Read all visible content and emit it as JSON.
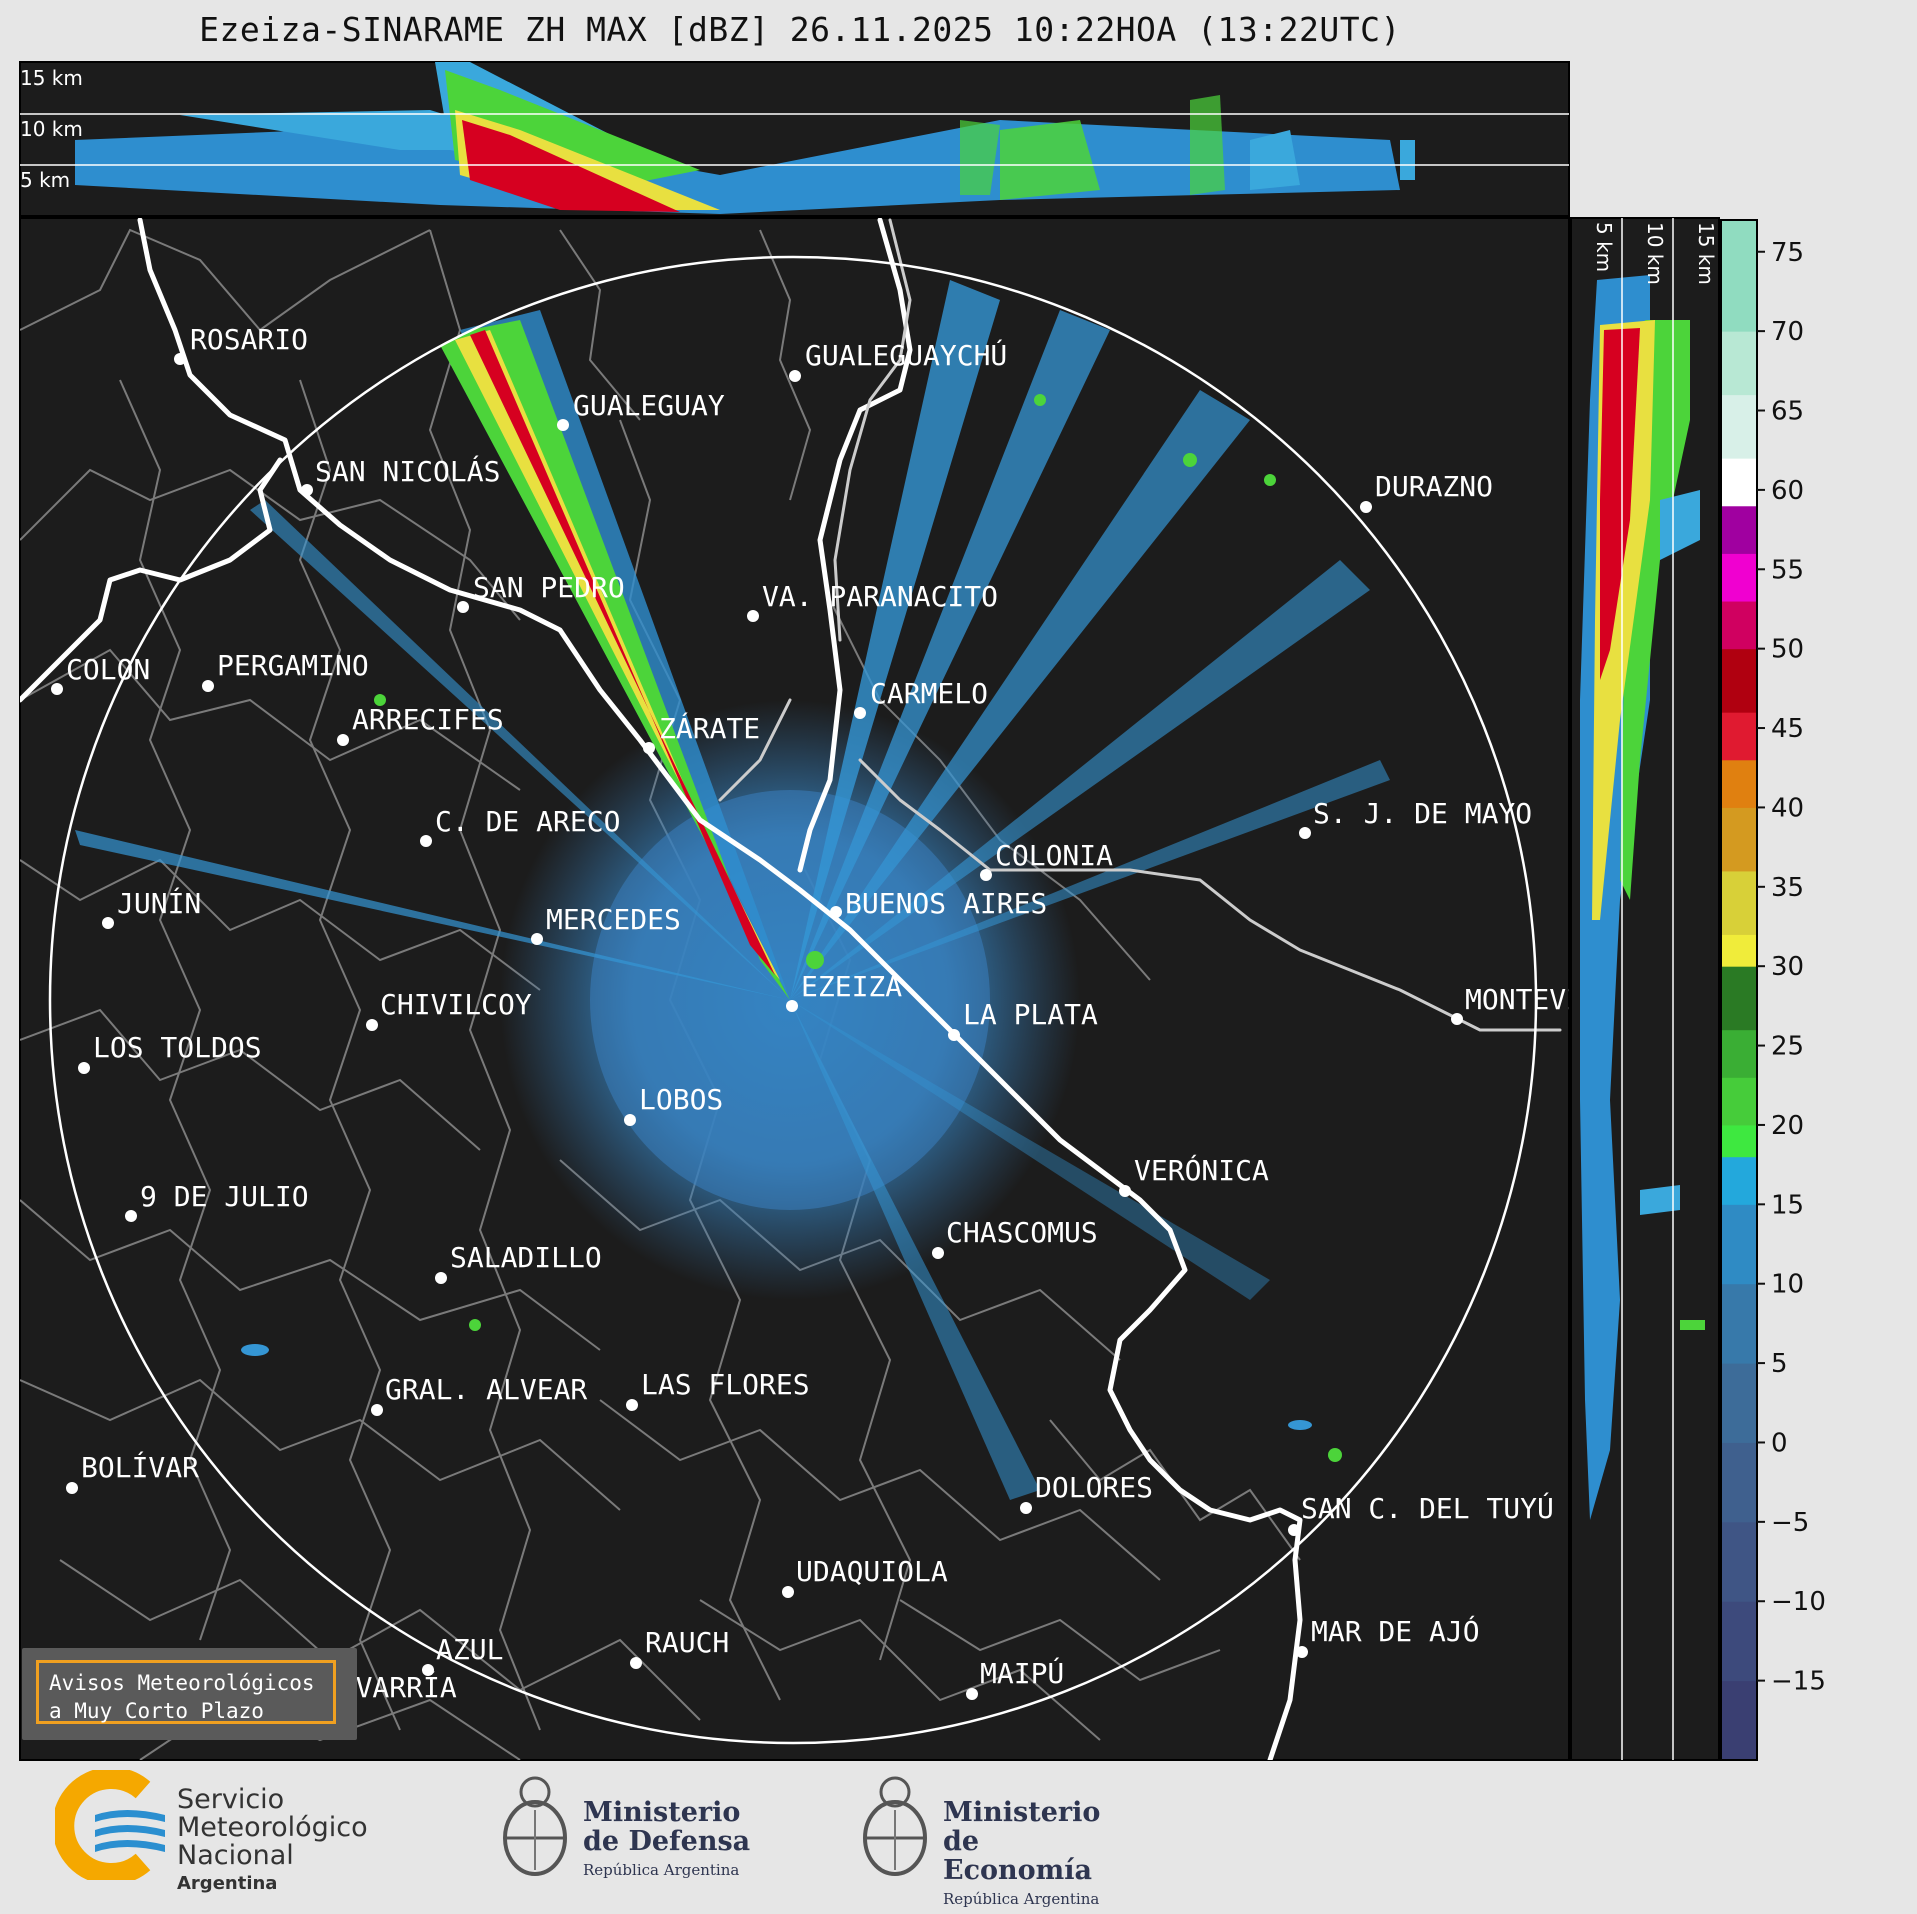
{
  "title": "Ezeiza-SINARAME ZH MAX [dBZ] 26.11.2025 10:22HOA (13:22UTC)",
  "top_panel": {
    "height_labels": [
      "15 km",
      "10 km",
      "5 km"
    ]
  },
  "side_panel": {
    "height_labels": [
      "5 km",
      "10 km",
      "15 km"
    ]
  },
  "colorbar": {
    "ticks": [
      "75",
      "70",
      "65",
      "60",
      "55",
      "50",
      "45",
      "40",
      "35",
      "30",
      "25",
      "20",
      "15",
      "10",
      "5",
      "0",
      "−5",
      "−10",
      "−15"
    ],
    "range": [
      -20,
      77
    ]
  },
  "cities": [
    {
      "name": "ROSARIO"
    },
    {
      "name": "GUALEGUAYCHÚ"
    },
    {
      "name": "GUALEGUAY"
    },
    {
      "name": "SAN NICOLÁS"
    },
    {
      "name": "DURAZNO"
    },
    {
      "name": "SAN PEDRO"
    },
    {
      "name": "VA. PARANACITO"
    },
    {
      "name": "COLON"
    },
    {
      "name": "PERGAMINO"
    },
    {
      "name": "CARMELO"
    },
    {
      "name": "ARRECIFES"
    },
    {
      "name": "ZÁRATE"
    },
    {
      "name": "C. DE ARECO"
    },
    {
      "name": "S. J. DE MAYO"
    },
    {
      "name": "COLONIA"
    },
    {
      "name": "JUNÍN"
    },
    {
      "name": "BUENOS AIRES"
    },
    {
      "name": "MERCEDES"
    },
    {
      "name": "EZEIZA"
    },
    {
      "name": "MONTEVIDEO"
    },
    {
      "name": "CHIVILCOY"
    },
    {
      "name": "LA PLATA"
    },
    {
      "name": "LOS TOLDOS"
    },
    {
      "name": "LOBOS"
    },
    {
      "name": "VERÓNICA"
    },
    {
      "name": "9 DE JULIO"
    },
    {
      "name": "CHASCOMUS"
    },
    {
      "name": "SALADILLO"
    },
    {
      "name": "GRAL. ALVEAR"
    },
    {
      "name": "LAS FLORES"
    },
    {
      "name": "BOLÍVAR"
    },
    {
      "name": "DOLORES"
    },
    {
      "name": "SAN C. DEL TUYÚ"
    },
    {
      "name": "UDAQUIOLA"
    },
    {
      "name": "MAR DE AJÓ"
    },
    {
      "name": "AZUL"
    },
    {
      "name": "RAUCH"
    },
    {
      "name": "OLAVARRÍA"
    },
    {
      "name": "MAIPÚ"
    }
  ],
  "warning": {
    "line1": "Avisos Meteorológicos",
    "line2": "a Muy Corto Plazo"
  },
  "logos": {
    "smn": {
      "line1": "Servicio",
      "line2": "Meteorológico",
      "line3": "Nacional",
      "country": "Argentina"
    },
    "defensa": {
      "line1": "Ministerio",
      "line2": "de Defensa",
      "sub": "República Argentina"
    },
    "economia": {
      "line1": "Ministerio",
      "line2": "de Economía",
      "sub": "República Argentina"
    }
  }
}
